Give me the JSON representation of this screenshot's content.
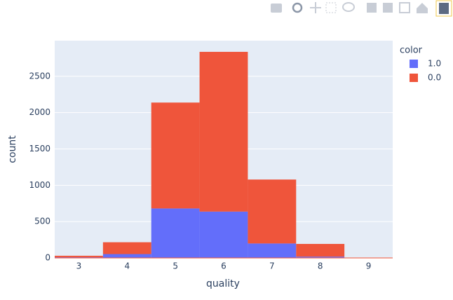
{
  "chart_data": {
    "type": "histogram",
    "barmode": "stack",
    "x_label": "quality",
    "y_label": "count",
    "legend_title": "color",
    "bins": [
      2.5,
      3.5,
      4.5,
      5.5,
      6.5,
      7.5,
      8.5,
      9.5
    ],
    "series": [
      {
        "name": "1.0",
        "color": "#636efa",
        "values": [
          10,
          53,
          681,
          638,
          199,
          18,
          0
        ]
      },
      {
        "name": "0.0",
        "color": "#ef553b",
        "values": [
          20,
          163,
          1457,
          2198,
          880,
          175,
          5
        ]
      }
    ],
    "xlim": [
      2.5,
      9.5
    ],
    "xticks": [
      3,
      4,
      5,
      6,
      7,
      8,
      9
    ],
    "ylim": [
      0,
      2990
    ],
    "yticks": [
      0,
      500,
      1000,
      1500,
      2000,
      2500
    ],
    "grid": true,
    "legend_position": "right"
  }
}
